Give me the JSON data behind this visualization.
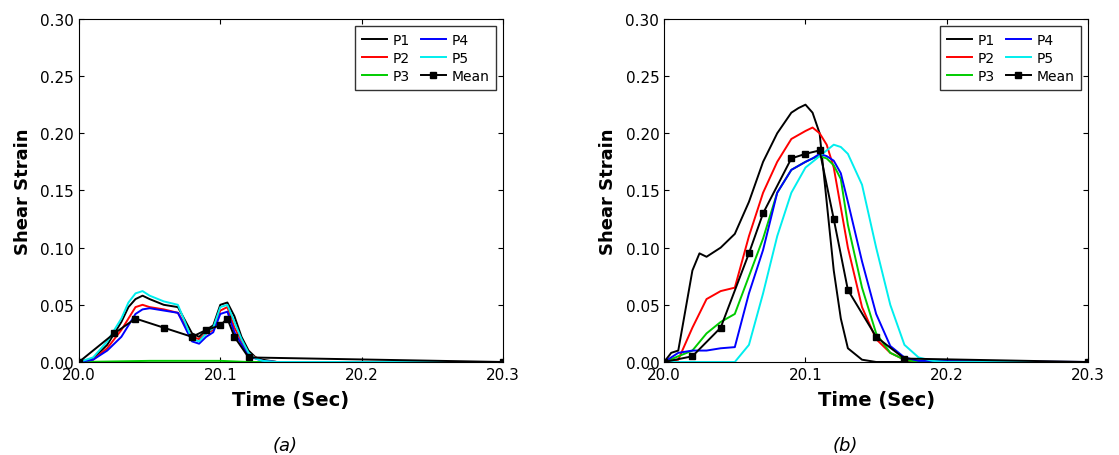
{
  "xlim": [
    20.0,
    20.3
  ],
  "ylim": [
    0.0,
    0.3
  ],
  "xlabel": "Time (Sec)",
  "ylabel": "Shear Strain",
  "yticks": [
    0.0,
    0.05,
    0.1,
    0.15,
    0.2,
    0.25,
    0.3
  ],
  "xticks": [
    20.0,
    20.1,
    20.2,
    20.3
  ],
  "plot_a": {
    "P1": {
      "color": "#000000",
      "x": [
        20.0,
        20.01,
        20.02,
        20.03,
        20.035,
        20.04,
        20.045,
        20.05,
        20.06,
        20.07,
        20.08,
        20.085,
        20.09,
        20.095,
        20.1,
        20.105,
        20.11,
        20.115,
        20.12,
        20.125,
        20.13,
        20.14,
        20.3
      ],
      "y": [
        0.0,
        0.003,
        0.015,
        0.035,
        0.048,
        0.055,
        0.058,
        0.055,
        0.05,
        0.048,
        0.025,
        0.022,
        0.028,
        0.032,
        0.05,
        0.052,
        0.04,
        0.022,
        0.01,
        0.004,
        0.002,
        0.0,
        0.0
      ]
    },
    "P2": {
      "color": "#ff0000",
      "x": [
        20.0,
        20.01,
        20.02,
        20.03,
        20.035,
        20.04,
        20.045,
        20.05,
        20.06,
        20.07,
        20.08,
        20.085,
        20.09,
        20.095,
        20.1,
        20.105,
        20.11,
        20.12,
        20.13,
        20.14,
        20.3
      ],
      "y": [
        0.0,
        0.002,
        0.012,
        0.028,
        0.038,
        0.048,
        0.05,
        0.048,
        0.046,
        0.043,
        0.022,
        0.02,
        0.025,
        0.028,
        0.045,
        0.048,
        0.03,
        0.007,
        0.001,
        0.0,
        0.0
      ]
    },
    "P3": {
      "color": "#00cc00",
      "x": [
        20.0,
        20.05,
        20.1,
        20.12,
        20.3
      ],
      "y": [
        0.0,
        0.001,
        0.001,
        0.0,
        0.0
      ]
    },
    "P4": {
      "color": "#0000ff",
      "x": [
        20.0,
        20.01,
        20.02,
        20.03,
        20.035,
        20.04,
        20.045,
        20.05,
        20.06,
        20.07,
        20.08,
        20.085,
        20.09,
        20.095,
        20.1,
        20.105,
        20.11,
        20.12,
        20.13,
        20.14,
        20.3
      ],
      "y": [
        0.0,
        0.002,
        0.01,
        0.022,
        0.032,
        0.042,
        0.046,
        0.047,
        0.045,
        0.043,
        0.018,
        0.016,
        0.022,
        0.026,
        0.042,
        0.044,
        0.026,
        0.005,
        0.001,
        0.0,
        0.0
      ]
    },
    "P5": {
      "color": "#00eeee",
      "x": [
        20.0,
        20.01,
        20.02,
        20.03,
        20.035,
        20.04,
        20.045,
        20.05,
        20.06,
        20.07,
        20.08,
        20.085,
        20.09,
        20.095,
        20.1,
        20.105,
        20.11,
        20.115,
        20.12,
        20.125,
        20.13,
        20.14,
        20.3
      ],
      "y": [
        0.0,
        0.004,
        0.018,
        0.038,
        0.052,
        0.06,
        0.062,
        0.058,
        0.053,
        0.05,
        0.02,
        0.018,
        0.025,
        0.03,
        0.048,
        0.05,
        0.035,
        0.02,
        0.008,
        0.003,
        0.001,
        0.0,
        0.0
      ]
    },
    "Mean": {
      "color": "#000000",
      "x": [
        20.0,
        20.025,
        20.04,
        20.06,
        20.08,
        20.09,
        20.1,
        20.105,
        20.11,
        20.12,
        20.3
      ],
      "y": [
        0.0,
        0.025,
        0.038,
        0.03,
        0.022,
        0.028,
        0.032,
        0.038,
        0.022,
        0.004,
        0.0
      ]
    }
  },
  "plot_b": {
    "P1": {
      "color": "#000000",
      "x": [
        20.0,
        20.005,
        20.01,
        20.02,
        20.025,
        20.03,
        20.04,
        20.05,
        20.06,
        20.07,
        20.08,
        20.09,
        20.095,
        20.1,
        20.105,
        20.11,
        20.115,
        20.12,
        20.125,
        20.13,
        20.14,
        20.15,
        20.3
      ],
      "y": [
        0.0,
        0.008,
        0.01,
        0.08,
        0.095,
        0.092,
        0.1,
        0.112,
        0.14,
        0.175,
        0.2,
        0.218,
        0.222,
        0.225,
        0.218,
        0.2,
        0.14,
        0.08,
        0.038,
        0.012,
        0.002,
        0.0,
        0.0
      ]
    },
    "P2": {
      "color": "#ff0000",
      "x": [
        20.0,
        20.01,
        20.02,
        20.03,
        20.04,
        20.05,
        20.06,
        20.07,
        20.08,
        20.09,
        20.1,
        20.105,
        20.11,
        20.115,
        20.12,
        20.13,
        20.14,
        20.15,
        20.16,
        20.17,
        20.18,
        20.19,
        20.3
      ],
      "y": [
        0.0,
        0.002,
        0.03,
        0.055,
        0.062,
        0.065,
        0.11,
        0.148,
        0.175,
        0.195,
        0.202,
        0.205,
        0.2,
        0.19,
        0.17,
        0.1,
        0.048,
        0.02,
        0.008,
        0.002,
        0.0,
        0.0,
        0.0
      ]
    },
    "P3": {
      "color": "#00cc00",
      "x": [
        20.0,
        20.02,
        20.03,
        20.04,
        20.05,
        20.06,
        20.07,
        20.08,
        20.09,
        20.1,
        20.105,
        20.11,
        20.115,
        20.12,
        20.125,
        20.13,
        20.14,
        20.15,
        20.16,
        20.17,
        20.18,
        20.3
      ],
      "y": [
        0.0,
        0.01,
        0.025,
        0.035,
        0.042,
        0.075,
        0.108,
        0.148,
        0.168,
        0.175,
        0.178,
        0.18,
        0.178,
        0.172,
        0.16,
        0.12,
        0.065,
        0.025,
        0.008,
        0.002,
        0.0,
        0.0
      ]
    },
    "P4": {
      "color": "#0000ff",
      "x": [
        20.0,
        20.01,
        20.02,
        20.03,
        20.04,
        20.05,
        20.06,
        20.07,
        20.08,
        20.09,
        20.1,
        20.105,
        20.11,
        20.115,
        20.12,
        20.125,
        20.13,
        20.14,
        20.15,
        20.16,
        20.17,
        20.18,
        20.3
      ],
      "y": [
        0.0,
        0.008,
        0.01,
        0.01,
        0.012,
        0.013,
        0.06,
        0.098,
        0.148,
        0.168,
        0.175,
        0.178,
        0.182,
        0.18,
        0.176,
        0.165,
        0.14,
        0.088,
        0.042,
        0.014,
        0.004,
        0.001,
        0.0
      ]
    },
    "P5": {
      "color": "#00eeee",
      "x": [
        20.0,
        20.02,
        20.03,
        20.04,
        20.05,
        20.06,
        20.07,
        20.08,
        20.09,
        20.1,
        20.105,
        20.11,
        20.115,
        20.12,
        20.125,
        20.13,
        20.14,
        20.15,
        20.16,
        20.17,
        20.18,
        20.19,
        20.2,
        20.3
      ],
      "y": [
        0.0,
        0.0,
        0.0,
        0.0,
        0.0,
        0.015,
        0.06,
        0.11,
        0.148,
        0.17,
        0.175,
        0.18,
        0.185,
        0.19,
        0.188,
        0.182,
        0.155,
        0.1,
        0.05,
        0.015,
        0.004,
        0.001,
        0.0,
        0.0
      ]
    },
    "Mean": {
      "color": "#000000",
      "x": [
        20.0,
        20.02,
        20.04,
        20.06,
        20.07,
        20.09,
        20.1,
        20.11,
        20.12,
        20.13,
        20.15,
        20.17,
        20.3
      ],
      "y": [
        0.0,
        0.005,
        0.03,
        0.095,
        0.13,
        0.178,
        0.182,
        0.185,
        0.125,
        0.063,
        0.022,
        0.003,
        0.0
      ]
    }
  },
  "label_a": "(a)",
  "label_b": "(b)"
}
